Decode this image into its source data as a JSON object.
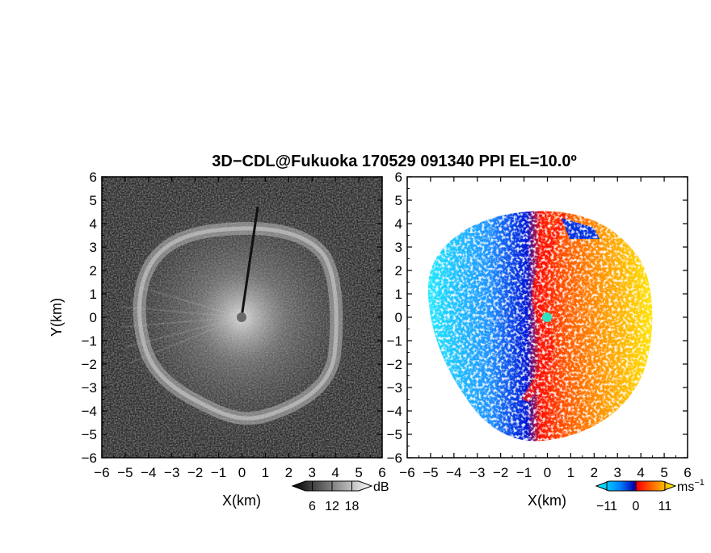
{
  "chart_data": [
    {
      "type": "heatmap",
      "title": "3D−CDL@Fukuoka 170529 091340 PPI EL=10.0º",
      "xlabel": "X(km)",
      "ylabel": "Y(km)",
      "xlim": [
        -6,
        6
      ],
      "ylim": [
        -6,
        6
      ],
      "x_ticks": [
        "−6",
        "−5",
        "−4",
        "−3",
        "−2",
        "−1",
        "0",
        "1",
        "2",
        "3",
        "4",
        "5",
        "6"
      ],
      "y_ticks": [
        "6",
        "5",
        "4",
        "3",
        "2",
        "1",
        "0",
        "−1",
        "−2",
        "−3",
        "−4",
        "−5",
        "−6"
      ],
      "colorbar": {
        "unit": "dB",
        "ticks": [
          "6",
          "12",
          "18"
        ],
        "tick_values": [
          6,
          12,
          18
        ],
        "range": [
          0,
          24
        ],
        "colors": [
          "#000000",
          "#ffffff"
        ]
      },
      "features": {
        "ring_radius_km": 3.9,
        "radar_center": [
          0,
          0
        ],
        "beam_block_azimuth_deg": 10
      }
    },
    {
      "type": "heatmap",
      "xlabel": "X(km)",
      "x_ticks": [
        "−6",
        "−5",
        "−4",
        "−3",
        "−2",
        "−1",
        "0",
        "1",
        "2",
        "3",
        "4",
        "5",
        "6"
      ],
      "y_ticks": [
        "6",
        "5",
        "4",
        "3",
        "2",
        "1",
        "0",
        "−1",
        "−2",
        "−3",
        "−4",
        "−5",
        "−6"
      ],
      "xlim": [
        -6,
        6
      ],
      "ylim": [
        -6,
        6
      ],
      "colorbar": {
        "unit": "ms",
        "unit_exponent": "−1",
        "ticks": [
          "−11",
          "0",
          "11"
        ],
        "tick_values": [
          -11,
          0,
          11
        ],
        "range": [
          -15,
          15
        ],
        "colors": [
          "#00ffff",
          "#0050ff",
          "#0000b0",
          "#ff0000",
          "#ff8000",
          "#ffff00"
        ]
      },
      "features": {
        "data_radius_km": 4.4,
        "radar_center": [
          0,
          0
        ]
      }
    }
  ]
}
